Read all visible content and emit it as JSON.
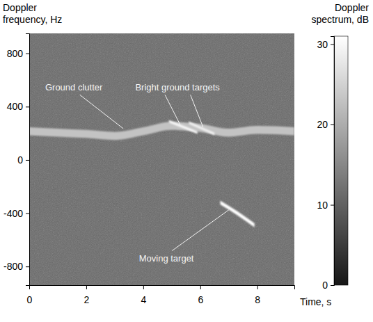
{
  "chart_data": {
    "type": "spectrogram",
    "x_label": "Time, s",
    "y_label": "Doppler frequency, Hz",
    "xlim": [
      0,
      9.3
    ],
    "xticks": [
      0,
      2,
      4,
      6,
      8
    ],
    "ylim": [
      -940,
      950
    ],
    "yticks": [
      -800,
      -400,
      0,
      400,
      800
    ],
    "background_level": 11,
    "series": [
      {
        "x": [
          0,
          1,
          2,
          3,
          4,
          5,
          6,
          7,
          8,
          9.3
        ],
        "values": [
          215,
          205,
          195,
          180,
          215,
          255,
          240,
          205,
          225,
          215
        ],
        "level": 23,
        "bandwidth": 60
      },
      {
        "x": [
          4.9,
          5.9
        ],
        "values": [
          290,
          205
        ],
        "level": 30,
        "bandwidth": 20
      },
      {
        "x": [
          5.6,
          6.5
        ],
        "values": [
          280,
          195
        ],
        "level": 29,
        "bandwidth": 20
      },
      {
        "x": [
          6.7,
          7.3,
          7.9
        ],
        "values": [
          -320,
          -400,
          -490
        ],
        "level": 31,
        "bandwidth": 30
      }
    ],
    "annotations": [
      {
        "text": "Ground clutter",
        "x": 0.56,
        "y": 520,
        "arrows": [
          [
            3.3,
            235
          ]
        ]
      },
      {
        "text": "Bright ground targets",
        "x": 3.72,
        "y": 520,
        "arrows": [
          [
            5.3,
            262
          ],
          [
            6.1,
            245
          ]
        ]
      },
      {
        "text": "Moving target",
        "x": 3.85,
        "y": -760,
        "arrows": [
          [
            7.0,
            -375
          ]
        ]
      }
    ],
    "colorbar": {
      "label": "Doppler spectrum, dB",
      "lim": [
        0,
        31
      ],
      "ticks": [
        0,
        10,
        20,
        30
      ]
    }
  }
}
